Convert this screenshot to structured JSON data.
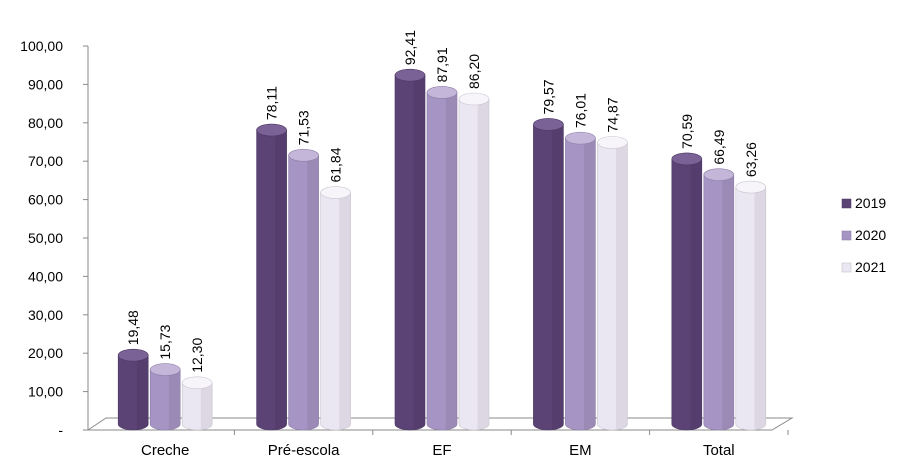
{
  "chart_data": {
    "type": "bar",
    "categories": [
      "Creche",
      "Pré-escola",
      "EF",
      "EM",
      "Total"
    ],
    "series": [
      {
        "name": "2019",
        "values": [
          19.48,
          78.11,
          92.41,
          79.57,
          70.59
        ],
        "labels": [
          "19,48",
          "78,11",
          "92,41",
          "79,57",
          "70,59"
        ],
        "color": "#5b4375",
        "top_color": "#7a6196"
      },
      {
        "name": "2020",
        "values": [
          15.73,
          71.53,
          87.91,
          76.01,
          66.49
        ],
        "labels": [
          "15,73",
          "71,53",
          "87,91",
          "76,01",
          "66,49"
        ],
        "color": "#a694c4",
        "top_color": "#c3b6d9"
      },
      {
        "name": "2021",
        "values": [
          12.3,
          61.84,
          86.2,
          74.87,
          63.26
        ],
        "labels": [
          "12,30",
          "61,84",
          "86,20",
          "74,87",
          "63,26"
        ],
        "color": "#ebe7f2",
        "top_color": "#f7f5fa"
      }
    ],
    "y_ticks": [
      {
        "value": 0,
        "label": "-"
      },
      {
        "value": 10,
        "label": "10,00"
      },
      {
        "value": 20,
        "label": "20,00"
      },
      {
        "value": 30,
        "label": "30,00"
      },
      {
        "value": 40,
        "label": "40,00"
      },
      {
        "value": 50,
        "label": "50,00"
      },
      {
        "value": 60,
        "label": "60,00"
      },
      {
        "value": 70,
        "label": "70,00"
      },
      {
        "value": 80,
        "label": "80,00"
      },
      {
        "value": 90,
        "label": "90,00"
      },
      {
        "value": 100,
        "label": "100,00"
      }
    ],
    "ylim": [
      0,
      100
    ],
    "grid": false,
    "legend_position": "right",
    "title": "",
    "xlabel": "",
    "ylabel": ""
  }
}
